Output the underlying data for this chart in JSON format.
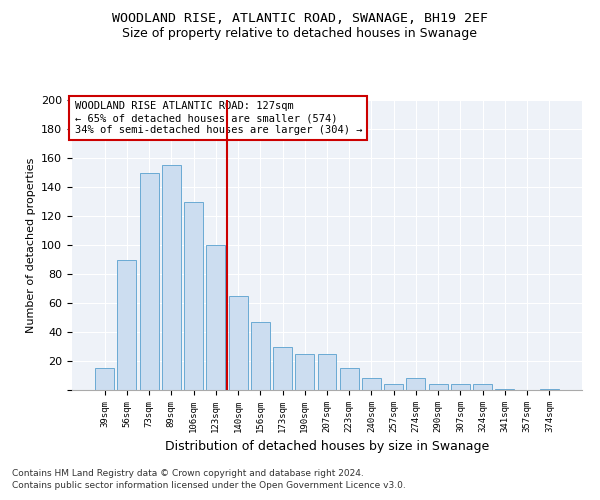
{
  "title1": "WOODLAND RISE, ATLANTIC ROAD, SWANAGE, BH19 2EF",
  "title2": "Size of property relative to detached houses in Swanage",
  "xlabel": "Distribution of detached houses by size in Swanage",
  "ylabel": "Number of detached properties",
  "categories": [
    "39sqm",
    "56sqm",
    "73sqm",
    "89sqm",
    "106sqm",
    "123sqm",
    "140sqm",
    "156sqm",
    "173sqm",
    "190sqm",
    "207sqm",
    "223sqm",
    "240sqm",
    "257sqm",
    "274sqm",
    "290sqm",
    "307sqm",
    "324sqm",
    "341sqm",
    "357sqm",
    "374sqm"
  ],
  "values": [
    15,
    90,
    150,
    155,
    130,
    100,
    65,
    47,
    30,
    25,
    25,
    15,
    8,
    4,
    8,
    4,
    4,
    4,
    1,
    0,
    1
  ],
  "bar_color": "#ccddf0",
  "bar_edge_color": "#6aaad4",
  "vline_x_index": 5.5,
  "vline_color": "#cc0000",
  "annotation_text": "WOODLAND RISE ATLANTIC ROAD: 127sqm\n← 65% of detached houses are smaller (574)\n34% of semi-detached houses are larger (304) →",
  "annotation_box_color": "#ffffff",
  "annotation_box_edge": "#cc0000",
  "ylim": [
    0,
    200
  ],
  "yticks": [
    0,
    20,
    40,
    60,
    80,
    100,
    120,
    140,
    160,
    180,
    200
  ],
  "footer1": "Contains HM Land Registry data © Crown copyright and database right 2024.",
  "footer2": "Contains public sector information licensed under the Open Government Licence v3.0.",
  "bg_color": "#eef2f8",
  "title_fontsize": 9.5,
  "subtitle_fontsize": 9,
  "bar_width": 0.85
}
